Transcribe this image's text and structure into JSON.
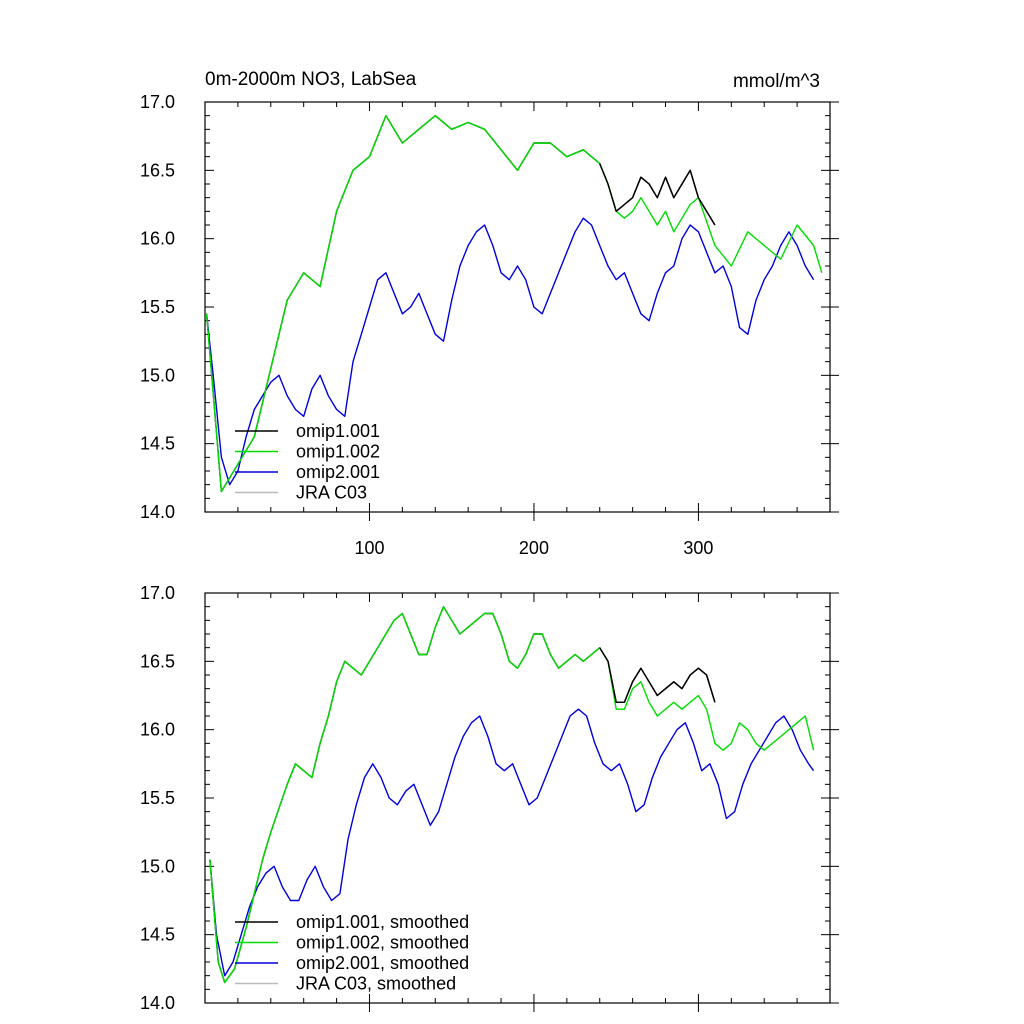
{
  "chart_data": [
    {
      "type": "line",
      "title": "0m-2000m NO3, LabSea",
      "units": "mmol/m^3",
      "xlabel": "",
      "ylabel": "",
      "xlim": [
        0,
        380
      ],
      "ylim": [
        14.0,
        17.0
      ],
      "xticks": [
        100,
        200,
        300
      ],
      "xtick_labels": [
        "100",
        "200",
        "300"
      ],
      "yticks": [
        14.0,
        14.5,
        15.0,
        15.5,
        16.0,
        16.5,
        17.0
      ],
      "ytick_labels": [
        "14.0",
        "14.5",
        "15.0",
        "15.5",
        "16.0",
        "16.5",
        "17.0"
      ],
      "legend_position": "bottom-left",
      "series": [
        {
          "name": "omip1.001",
          "color": "#000000",
          "x": [
            1,
            10,
            20,
            30,
            40,
            50,
            60,
            70,
            80,
            90,
            100,
            110,
            120,
            130,
            140,
            150,
            160,
            170,
            180,
            190,
            200,
            210,
            220,
            230,
            240,
            245,
            250,
            255,
            260,
            265,
            270,
            275,
            280,
            285,
            290,
            295,
            300,
            305,
            310
          ],
          "values": [
            15.45,
            14.15,
            14.35,
            14.55,
            15.05,
            15.55,
            15.75,
            15.65,
            16.2,
            16.5,
            16.6,
            16.9,
            16.7,
            16.8,
            16.9,
            16.8,
            16.85,
            16.8,
            16.65,
            16.5,
            16.7,
            16.7,
            16.6,
            16.65,
            16.55,
            16.4,
            16.2,
            16.25,
            16.3,
            16.45,
            16.4,
            16.3,
            16.45,
            16.3,
            16.4,
            16.5,
            16.3,
            16.2,
            16.1
          ]
        },
        {
          "name": "omip1.002",
          "color": "#00dd00",
          "x": [
            1,
            10,
            20,
            30,
            40,
            50,
            60,
            70,
            80,
            90,
            100,
            110,
            120,
            130,
            140,
            150,
            160,
            170,
            180,
            190,
            200,
            210,
            220,
            230,
            240,
            245,
            250,
            255,
            260,
            265,
            270,
            275,
            280,
            285,
            290,
            295,
            300,
            310,
            320,
            330,
            340,
            350,
            360,
            370,
            375
          ],
          "values": [
            15.45,
            14.15,
            14.35,
            14.55,
            15.05,
            15.55,
            15.75,
            15.65,
            16.2,
            16.5,
            16.6,
            16.9,
            16.7,
            16.8,
            16.9,
            16.8,
            16.85,
            16.8,
            16.65,
            16.5,
            16.7,
            16.7,
            16.6,
            16.65,
            16.55,
            16.4,
            16.2,
            16.15,
            16.2,
            16.3,
            16.2,
            16.1,
            16.2,
            16.05,
            16.15,
            16.25,
            16.3,
            15.95,
            15.8,
            16.05,
            15.95,
            15.85,
            16.1,
            15.95,
            15.75
          ]
        },
        {
          "name": "omip2.001",
          "color": "#0000dd",
          "x": [
            1,
            5,
            10,
            15,
            20,
            25,
            30,
            35,
            40,
            45,
            50,
            55,
            60,
            65,
            70,
            75,
            80,
            85,
            90,
            95,
            100,
            105,
            110,
            115,
            120,
            125,
            130,
            135,
            140,
            145,
            150,
            155,
            160,
            165,
            170,
            175,
            180,
            185,
            190,
            195,
            200,
            205,
            210,
            215,
            220,
            225,
            230,
            235,
            240,
            245,
            250,
            255,
            260,
            265,
            270,
            275,
            280,
            285,
            290,
            295,
            300,
            305,
            310,
            315,
            320,
            325,
            330,
            335,
            340,
            345,
            350,
            355,
            360,
            365,
            370
          ],
          "values": [
            15.45,
            15.0,
            14.4,
            14.2,
            14.3,
            14.55,
            14.75,
            14.85,
            14.95,
            15.0,
            14.85,
            14.75,
            14.7,
            14.9,
            15.0,
            14.85,
            14.75,
            14.7,
            15.1,
            15.3,
            15.5,
            15.7,
            15.75,
            15.6,
            15.45,
            15.5,
            15.6,
            15.45,
            15.3,
            15.25,
            15.55,
            15.8,
            15.95,
            16.05,
            16.1,
            15.95,
            15.75,
            15.7,
            15.8,
            15.7,
            15.5,
            15.45,
            15.6,
            15.75,
            15.9,
            16.05,
            16.15,
            16.1,
            15.95,
            15.8,
            15.7,
            15.75,
            15.6,
            15.45,
            15.4,
            15.6,
            15.75,
            15.8,
            16.0,
            16.1,
            16.05,
            15.9,
            15.75,
            15.8,
            15.65,
            15.35,
            15.3,
            15.55,
            15.7,
            15.8,
            15.95,
            16.05,
            15.95,
            15.8,
            15.7
          ]
        },
        {
          "name": "JRA C03",
          "color": "#bbbbbb",
          "x": [],
          "values": []
        }
      ]
    },
    {
      "type": "line",
      "title": "",
      "units": "",
      "xlabel": "",
      "ylabel": "",
      "xlim": [
        0,
        380
      ],
      "ylim": [
        14.0,
        17.0
      ],
      "xticks": [
        100,
        200,
        300
      ],
      "xtick_labels": [],
      "yticks": [
        14.0,
        14.5,
        15.0,
        15.5,
        16.0,
        16.5,
        17.0
      ],
      "ytick_labels": [
        "14.0",
        "14.5",
        "15.0",
        "15.5",
        "16.0",
        "16.5",
        "17.0"
      ],
      "legend_position": "bottom-left",
      "series": [
        {
          "name": "omip1.001, smoothed",
          "color": "#000000",
          "x": [
            3,
            8,
            12,
            18,
            25,
            30,
            35,
            40,
            50,
            55,
            60,
            65,
            70,
            75,
            80,
            85,
            90,
            95,
            100,
            105,
            110,
            115,
            120,
            125,
            130,
            135,
            140,
            145,
            150,
            155,
            160,
            165,
            170,
            175,
            180,
            185,
            190,
            195,
            200,
            205,
            210,
            215,
            220,
            225,
            230,
            235,
            240,
            245,
            250,
            255,
            260,
            265,
            270,
            275,
            280,
            285,
            290,
            295,
            300,
            305,
            310
          ],
          "values": [
            15.05,
            14.3,
            14.15,
            14.25,
            14.55,
            14.8,
            15.05,
            15.25,
            15.6,
            15.75,
            15.7,
            15.65,
            15.9,
            16.1,
            16.35,
            16.5,
            16.45,
            16.4,
            16.5,
            16.6,
            16.7,
            16.8,
            16.85,
            16.7,
            16.55,
            16.55,
            16.75,
            16.9,
            16.8,
            16.7,
            16.75,
            16.8,
            16.85,
            16.85,
            16.7,
            16.5,
            16.45,
            16.55,
            16.7,
            16.7,
            16.55,
            16.45,
            16.5,
            16.55,
            16.5,
            16.55,
            16.6,
            16.5,
            16.2,
            16.2,
            16.35,
            16.45,
            16.35,
            16.25,
            16.3,
            16.35,
            16.3,
            16.4,
            16.45,
            16.4,
            16.2
          ]
        },
        {
          "name": "omip1.002, smoothed",
          "color": "#00dd00",
          "x": [
            3,
            8,
            12,
            18,
            25,
            30,
            35,
            40,
            50,
            55,
            60,
            65,
            70,
            75,
            80,
            85,
            90,
            95,
            100,
            105,
            110,
            115,
            120,
            125,
            130,
            135,
            140,
            145,
            150,
            155,
            160,
            165,
            170,
            175,
            180,
            185,
            190,
            195,
            200,
            205,
            210,
            215,
            220,
            225,
            230,
            235,
            240,
            245,
            250,
            255,
            260,
            265,
            270,
            275,
            280,
            285,
            290,
            295,
            300,
            305,
            310,
            315,
            320,
            325,
            330,
            335,
            340,
            345,
            350,
            355,
            360,
            365,
            370
          ],
          "values": [
            15.05,
            14.3,
            14.15,
            14.25,
            14.55,
            14.8,
            15.05,
            15.25,
            15.6,
            15.75,
            15.7,
            15.65,
            15.9,
            16.1,
            16.35,
            16.5,
            16.45,
            16.4,
            16.5,
            16.6,
            16.7,
            16.8,
            16.85,
            16.7,
            16.55,
            16.55,
            16.75,
            16.9,
            16.8,
            16.7,
            16.75,
            16.8,
            16.85,
            16.85,
            16.7,
            16.5,
            16.45,
            16.55,
            16.7,
            16.7,
            16.55,
            16.45,
            16.5,
            16.55,
            16.5,
            16.55,
            16.6,
            16.5,
            16.15,
            16.15,
            16.3,
            16.35,
            16.2,
            16.1,
            16.15,
            16.2,
            16.15,
            16.2,
            16.25,
            16.15,
            15.9,
            15.85,
            15.9,
            16.05,
            16.0,
            15.9,
            15.85,
            15.9,
            15.95,
            16.0,
            16.05,
            16.1,
            15.85
          ]
        },
        {
          "name": "omip2.001, smoothed",
          "color": "#0000dd",
          "x": [
            3,
            7,
            12,
            17,
            22,
            27,
            32,
            37,
            42,
            47,
            52,
            57,
            62,
            67,
            72,
            77,
            82,
            87,
            92,
            97,
            102,
            107,
            112,
            117,
            122,
            127,
            132,
            137,
            142,
            147,
            152,
            157,
            162,
            167,
            172,
            177,
            182,
            187,
            192,
            197,
            202,
            207,
            212,
            217,
            222,
            227,
            232,
            237,
            242,
            247,
            252,
            257,
            262,
            267,
            272,
            277,
            282,
            287,
            292,
            297,
            302,
            307,
            312,
            317,
            322,
            327,
            332,
            337,
            342,
            347,
            352,
            357,
            362,
            367,
            370
          ],
          "values": [
            15.05,
            14.5,
            14.2,
            14.3,
            14.5,
            14.7,
            14.85,
            14.95,
            15.0,
            14.85,
            14.75,
            14.75,
            14.9,
            15.0,
            14.85,
            14.75,
            14.8,
            15.2,
            15.45,
            15.65,
            15.75,
            15.65,
            15.5,
            15.45,
            15.55,
            15.6,
            15.45,
            15.3,
            15.4,
            15.6,
            15.8,
            15.95,
            16.05,
            16.1,
            15.95,
            15.75,
            15.7,
            15.75,
            15.6,
            15.45,
            15.5,
            15.65,
            15.8,
            15.95,
            16.1,
            16.15,
            16.1,
            15.9,
            15.75,
            15.7,
            15.75,
            15.6,
            15.4,
            15.45,
            15.65,
            15.8,
            15.9,
            16.0,
            16.05,
            15.9,
            15.7,
            15.75,
            15.6,
            15.35,
            15.4,
            15.6,
            15.75,
            15.85,
            15.95,
            16.05,
            16.1,
            16.0,
            15.85,
            15.75,
            15.7
          ]
        },
        {
          "name": "JRA C03, smoothed",
          "color": "#bbbbbb",
          "x": [],
          "values": []
        }
      ]
    }
  ]
}
